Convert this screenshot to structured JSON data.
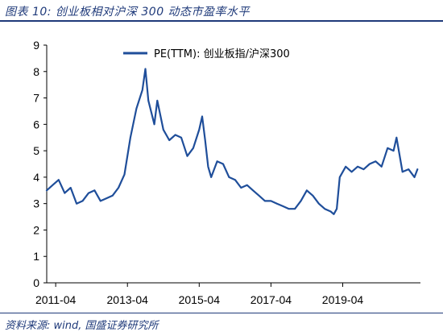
{
  "header": {
    "title": "图表 10:  创业板相对沪深 300 动态市盈率水平",
    "source": "资料来源:  wind, 国盛证券研究所"
  },
  "colors": {
    "line": "#1f4e9a",
    "accent": "#1f3a7a"
  },
  "chart_data": {
    "type": "line",
    "title": "",
    "xlabel": "",
    "ylabel": "",
    "ylim": [
      0,
      9
    ],
    "yticks": [
      0,
      1,
      2,
      3,
      4,
      5,
      6,
      7,
      8,
      9
    ],
    "xlim": [
      "2011-01",
      "2021-06"
    ],
    "xtick_labels": [
      "2011-04",
      "2013-04",
      "2015-04",
      "2017-04",
      "2019-04"
    ],
    "grid": false,
    "legend": "top-center",
    "series": [
      {
        "name": "PE(TTM):  创业板指/沪深300",
        "x": [
          "2011-01",
          "2011-03",
          "2011-05",
          "2011-07",
          "2011-09",
          "2011-11",
          "2012-01",
          "2012-03",
          "2012-05",
          "2012-07",
          "2012-09",
          "2012-11",
          "2013-01",
          "2013-03",
          "2013-05",
          "2013-07",
          "2013-09",
          "2013-10",
          "2013-11",
          "2014-01",
          "2014-02",
          "2014-04",
          "2014-06",
          "2014-08",
          "2014-10",
          "2014-12",
          "2015-02",
          "2015-04",
          "2015-05",
          "2015-06",
          "2015-07",
          "2015-08",
          "2015-10",
          "2015-12",
          "2016-02",
          "2016-04",
          "2016-06",
          "2016-08",
          "2016-10",
          "2016-12",
          "2017-02",
          "2017-04",
          "2017-06",
          "2017-08",
          "2017-10",
          "2017-12",
          "2018-02",
          "2018-04",
          "2018-06",
          "2018-08",
          "2018-10",
          "2018-12",
          "2019-01",
          "2019-02",
          "2019-03",
          "2019-05",
          "2019-07",
          "2019-09",
          "2019-11",
          "2020-01",
          "2020-03",
          "2020-05",
          "2020-07",
          "2020-09",
          "2020-10",
          "2020-12",
          "2021-02",
          "2021-04",
          "2021-05"
        ],
        "y": [
          3.5,
          3.7,
          3.9,
          3.4,
          3.6,
          3.0,
          3.1,
          3.4,
          3.5,
          3.1,
          3.2,
          3.3,
          3.6,
          4.1,
          5.5,
          6.6,
          7.3,
          8.1,
          6.9,
          6.0,
          6.9,
          5.8,
          5.4,
          5.6,
          5.5,
          4.8,
          5.1,
          5.8,
          6.3,
          5.4,
          4.4,
          4.0,
          4.6,
          4.5,
          4.0,
          3.9,
          3.6,
          3.7,
          3.5,
          3.3,
          3.1,
          3.1,
          3.0,
          2.9,
          2.8,
          2.8,
          3.1,
          3.5,
          3.3,
          3.0,
          2.8,
          2.7,
          2.6,
          2.8,
          4.0,
          4.4,
          4.2,
          4.4,
          4.3,
          4.5,
          4.6,
          4.4,
          5.1,
          5.0,
          5.5,
          4.2,
          4.3,
          4.0,
          4.3
        ]
      }
    ]
  }
}
